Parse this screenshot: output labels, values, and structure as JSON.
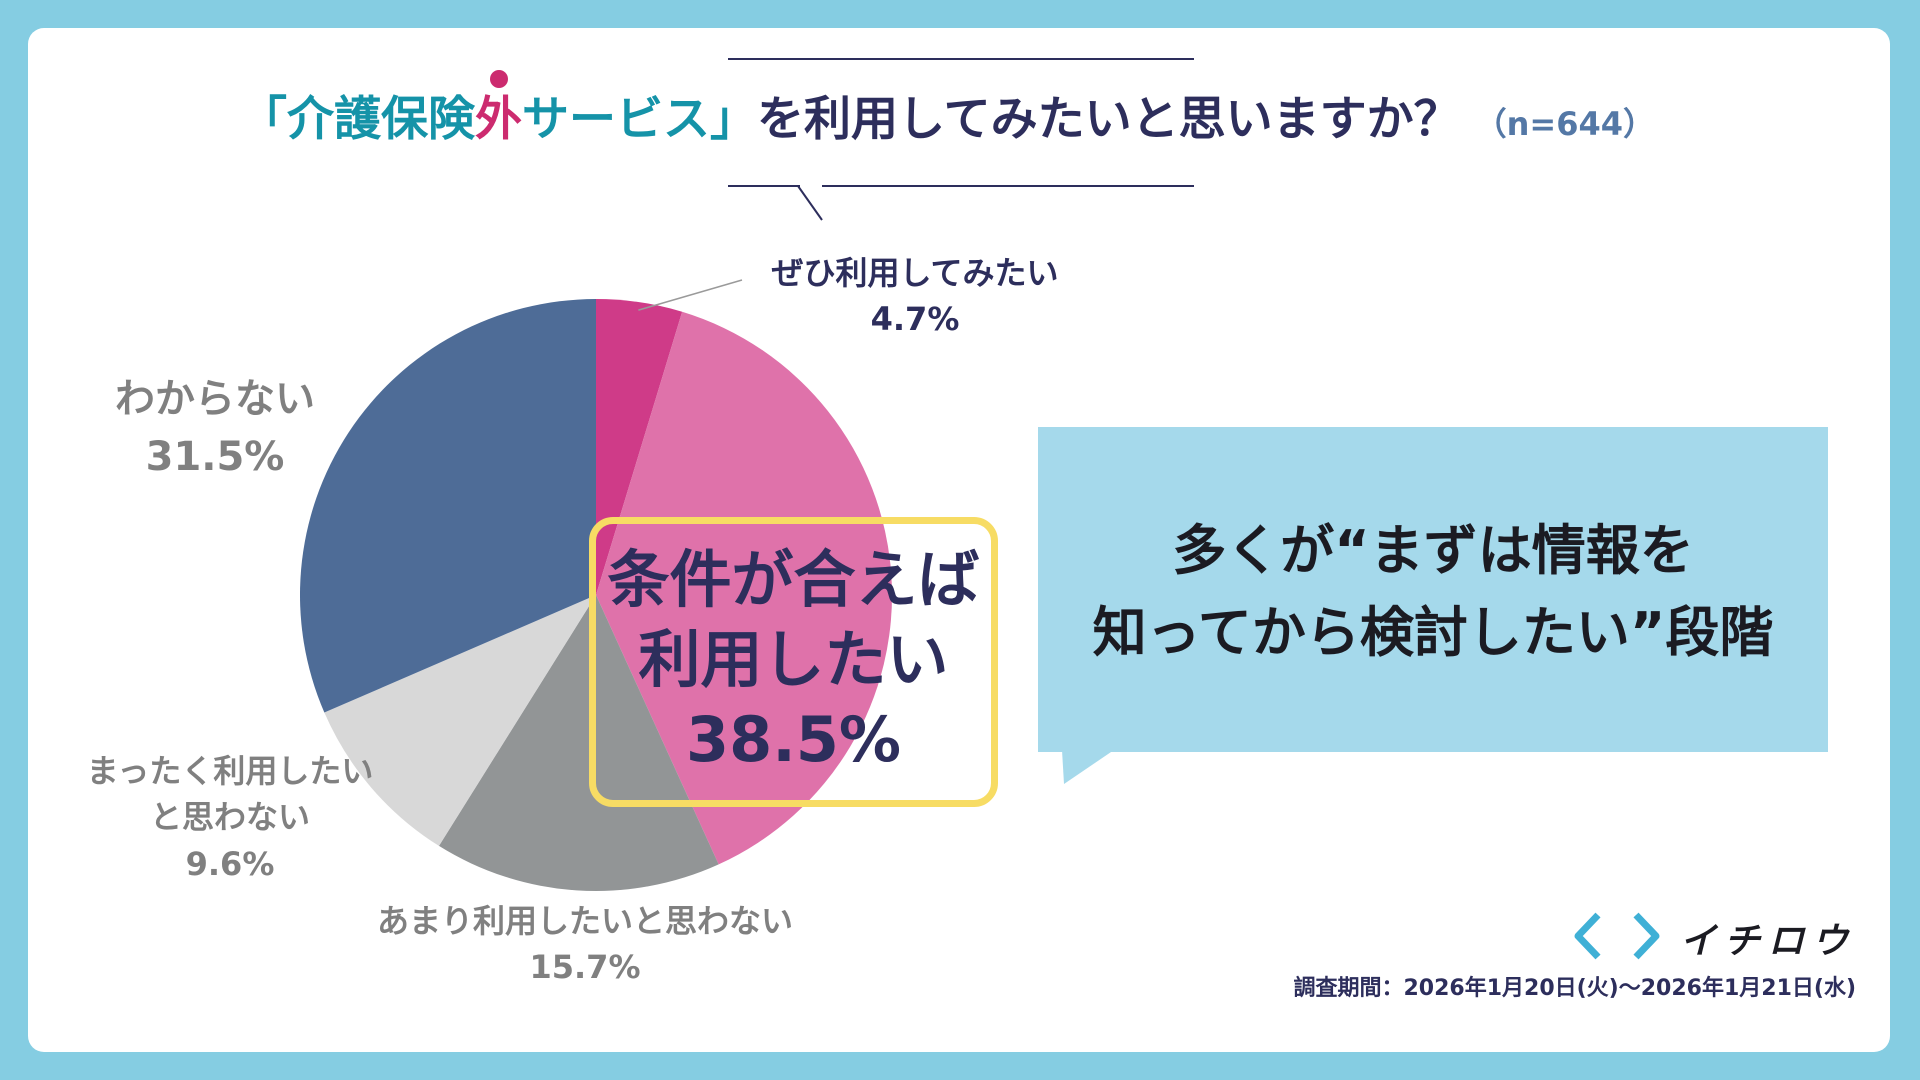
{
  "title": {
    "part1": "「介護保険",
    "accent": "外",
    "part2": "サービス」",
    "part3": "を利用してみたいと思いますか？",
    "n": "（n=644）"
  },
  "callout": {
    "line1": "多くが“まずは情報を",
    "line2": "知ってから検討したい”段階"
  },
  "highlight": {
    "line1": "条件が合えば",
    "line2": "利用したい",
    "value": "38.5%"
  },
  "labels": {
    "want_definitely": {
      "text": "ぜひ利用してみたい",
      "value": "4.7%"
    },
    "dont_know": {
      "text": "わからない",
      "value": "31.5%"
    },
    "not_at_all": {
      "line1": "まったく利用したい",
      "line2": "と思わない",
      "value": "9.6%"
    },
    "not_much": {
      "text": "あまり利用したいと思わない",
      "value": "15.7%"
    }
  },
  "logo": {
    "text": "イチロウ"
  },
  "footer": {
    "survey_period": "調査期間：2026年1月20日(火)〜2026年1月21日(水)"
  },
  "colors": {
    "background": "#85cde2",
    "title_teal": "#1593a8",
    "accent_pink": "#cc2b6f",
    "navy": "#2d2e5c",
    "callout_bg": "#a5d9eb",
    "highlight_border": "#f7dc64"
  },
  "chart_data": {
    "type": "pie",
    "start": "12 o'clock, clockwise",
    "categories": [
      "ぜひ利用してみたい",
      "条件が合えば利用したい",
      "あまり利用したいと思わない",
      "まったく利用したいと思わない",
      "わからない"
    ],
    "values": [
      4.7,
      38.5,
      15.7,
      9.6,
      31.5
    ],
    "colors": [
      "#cf3b88",
      "#df72aa",
      "#929596",
      "#d8d8d8",
      "#4e6c97"
    ],
    "unit": "%",
    "n": 644
  }
}
